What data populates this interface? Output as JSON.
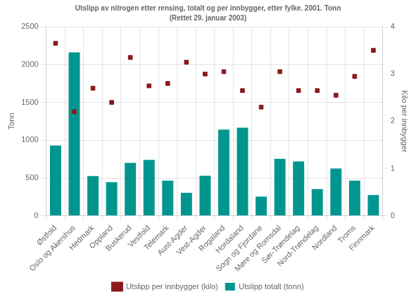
{
  "chart_data": {
    "type": "bar",
    "title": "Utslipp av nitrogen etter rensing, totalt og per innbygger, etter fylke. 2001. Tonn",
    "subtitle": "(Rettet 29. januar 2003)",
    "categories": [
      "Østfold",
      "Oslo og Akershus",
      "Hedmark",
      "Oppland",
      "Buskerud",
      "Vestfold",
      "Telemark",
      "Aust-Agder",
      "Vest-Agder",
      "Rogaland",
      "Hordaland",
      "Sogn og Fjordane",
      "Møre og Romsdal",
      "Sør-Trøndelag",
      "Nord-Trøndelag",
      "Nordland",
      "Troms",
      "Finnmark"
    ],
    "series": [
      {
        "name": "Utslipp totalt (tonn)",
        "type": "bar",
        "color": "#00968F",
        "values": [
          930,
          2160,
          525,
          445,
          700,
          740,
          465,
          305,
          530,
          1140,
          1165,
          255,
          755,
          720,
          355,
          625,
          465,
          275
        ]
      },
      {
        "name": "Utslipp per innbygger (kilo)",
        "type": "scatter",
        "marker": "square",
        "color": "#8B1A1A",
        "axis": "y2",
        "values": [
          3.65,
          2.2,
          2.7,
          2.4,
          3.35,
          2.75,
          2.8,
          3.25,
          3.0,
          3.05,
          2.65,
          2.3,
          3.05,
          2.65,
          2.65,
          2.55,
          2.95,
          3.5
        ]
      }
    ],
    "ylabel": "Tonn",
    "y2label": "Kilo per innbygger",
    "ylim": [
      0,
      2500
    ],
    "yticks": [
      0,
      500,
      1000,
      1500,
      2000,
      2500
    ],
    "y2lim": [
      0,
      4
    ],
    "y2ticks": [
      0,
      1,
      2,
      3,
      4
    ],
    "grid": true,
    "legend": "bottom"
  }
}
